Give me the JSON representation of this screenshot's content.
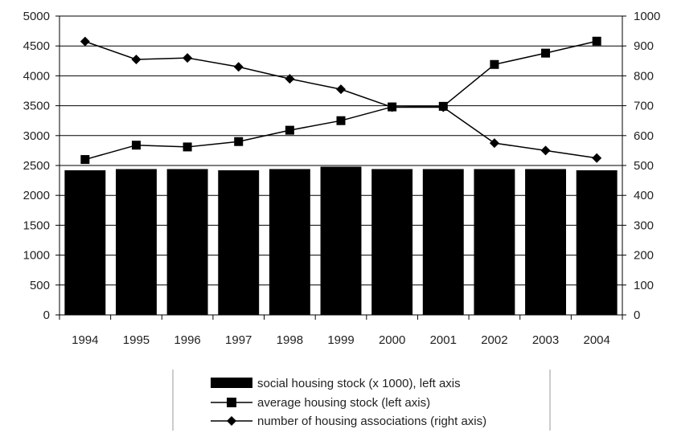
{
  "chart_data": {
    "type": "bar",
    "categories": [
      "1994",
      "1995",
      "1996",
      "1997",
      "1998",
      "1999",
      "2000",
      "2001",
      "2002",
      "2003",
      "2004"
    ],
    "left_axis": {
      "ylim": [
        0,
        5000
      ],
      "ticks": [
        "0",
        "500",
        "1000",
        "1500",
        "2000",
        "2500",
        "3000",
        "3500",
        "4000",
        "4500",
        "5000"
      ]
    },
    "right_axis": {
      "ylim": [
        0,
        1000
      ],
      "ticks": [
        "0",
        "100",
        "200",
        "300",
        "400",
        "500",
        "600",
        "700",
        "800",
        "900",
        "1000"
      ]
    },
    "grid": true,
    "series": [
      {
        "name": "social housing stock (x 1000), left axis",
        "type": "bar",
        "axis": "left",
        "color": "#000000",
        "values": [
          2420,
          2440,
          2440,
          2420,
          2440,
          2480,
          2440,
          2440,
          2440,
          2440,
          2420
        ]
      },
      {
        "name": "average housing stock (left axis)",
        "type": "line",
        "marker": "square",
        "axis": "left",
        "color": "#000000",
        "values": [
          2600,
          2840,
          2810,
          2900,
          3090,
          3250,
          3480,
          3490,
          4190,
          4380,
          4580
        ]
      },
      {
        "name": "number of housing associations (right axis)",
        "type": "line",
        "marker": "diamond",
        "axis": "right",
        "color": "#000000",
        "values": [
          915,
          855,
          860,
          830,
          790,
          755,
          695,
          695,
          575,
          550,
          525
        ]
      }
    ],
    "legend_position": "bottom-center"
  }
}
